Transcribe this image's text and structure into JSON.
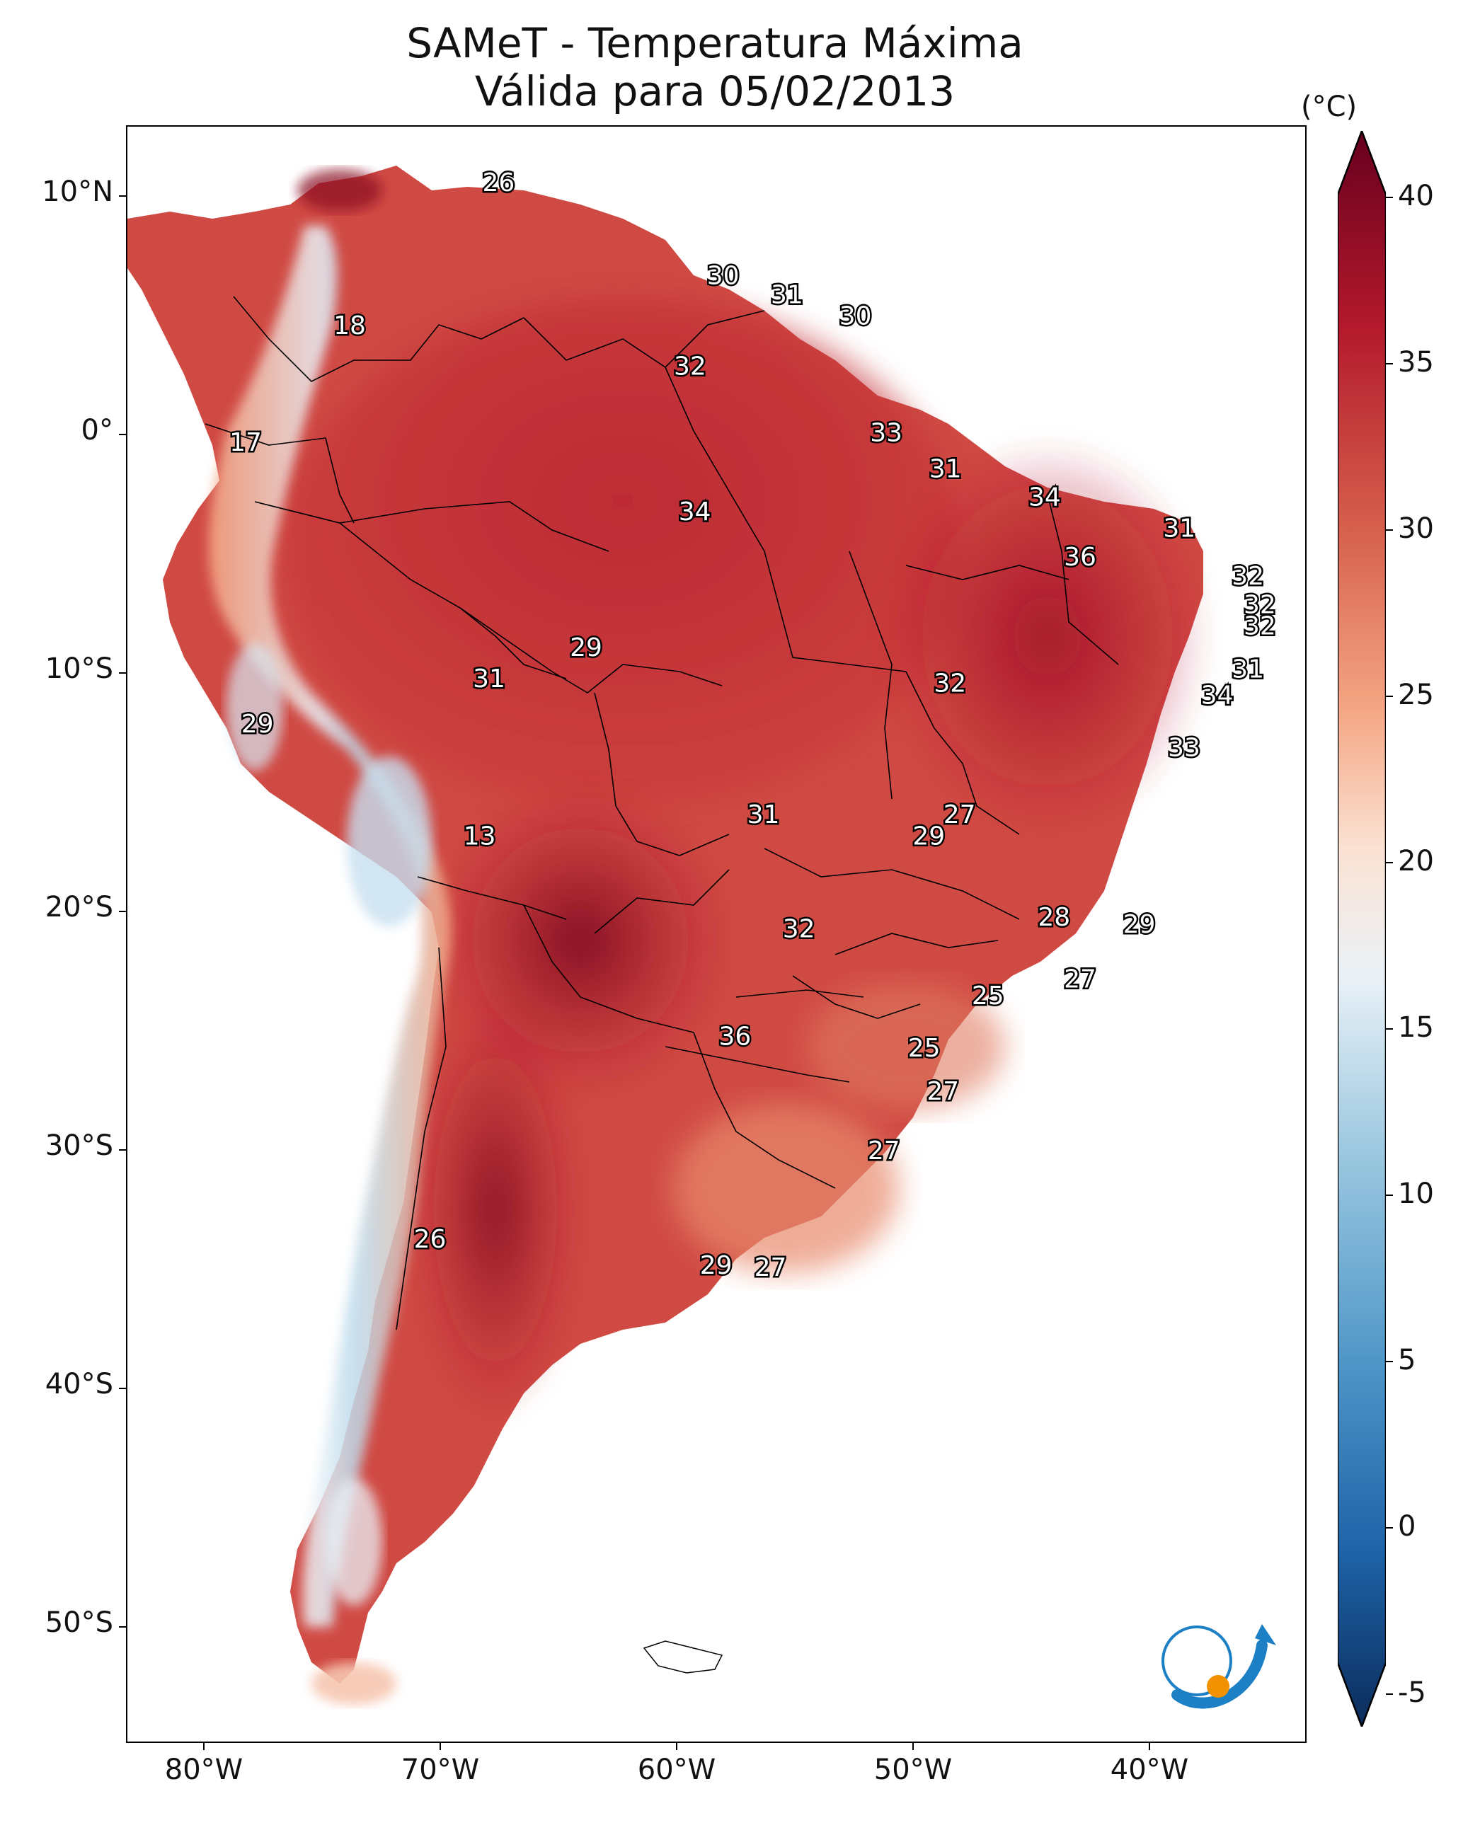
{
  "title": {
    "line1": "SAMeT - Temperatura Máxima",
    "line2": "Válida para 05/02/2013"
  },
  "colorbar": {
    "unit": "(°C)",
    "range": [
      -7,
      41
    ],
    "ticks": [
      "-5",
      "0",
      "5",
      "10",
      "15",
      "20",
      "25",
      "30",
      "35",
      "40"
    ],
    "colors": [
      "#0b2c5b",
      "#1e63a8",
      "#4a93c6",
      "#9cc8e0",
      "#e9f1f7",
      "#fbe2d3",
      "#f4a582",
      "#d6604d",
      "#b2182b",
      "#67001f"
    ]
  },
  "axes": {
    "lat_labels": [
      "10°N",
      "0°",
      "10°S",
      "20°S",
      "30°S",
      "40°S",
      "50°S"
    ],
    "lon_labels": [
      "80°W",
      "70°W",
      "60°W",
      "50°W",
      "40°W"
    ]
  },
  "temperature_labels": [
    {
      "text": "26",
      "lon": -67.3,
      "lat": 10.6
    },
    {
      "text": "30",
      "lon": -57.8,
      "lat": 6.7
    },
    {
      "text": "31",
      "lon": -55.1,
      "lat": 5.9
    },
    {
      "text": "30",
      "lon": -52.2,
      "lat": 5.0
    },
    {
      "text": "18",
      "lon": -73.6,
      "lat": 4.6
    },
    {
      "text": "32",
      "lon": -59.2,
      "lat": 2.9
    },
    {
      "text": "17",
      "lon": -78.0,
      "lat": -0.3
    },
    {
      "text": "33",
      "lon": -50.9,
      "lat": 0.1
    },
    {
      "text": "31",
      "lon": -48.4,
      "lat": -1.4
    },
    {
      "text": "34",
      "lon": -44.2,
      "lat": -2.6
    },
    {
      "text": "34",
      "lon": -59.0,
      "lat": -3.2
    },
    {
      "text": "31",
      "lon": -38.5,
      "lat": -3.9
    },
    {
      "text": "36",
      "lon": -42.7,
      "lat": -5.1
    },
    {
      "text": "32",
      "lon": -35.6,
      "lat": -5.9
    },
    {
      "text": "32",
      "lon": -35.1,
      "lat": -7.1
    },
    {
      "text": "32",
      "lon": -35.1,
      "lat": -8.0
    },
    {
      "text": "29",
      "lon": -63.6,
      "lat": -8.9
    },
    {
      "text": "31",
      "lon": -35.6,
      "lat": -9.8
    },
    {
      "text": "31",
      "lon": -67.7,
      "lat": -10.2
    },
    {
      "text": "32",
      "lon": -48.2,
      "lat": -10.4
    },
    {
      "text": "34",
      "lon": -36.9,
      "lat": -10.9
    },
    {
      "text": "29",
      "lon": -77.5,
      "lat": -12.1
    },
    {
      "text": "33",
      "lon": -38.3,
      "lat": -13.1
    },
    {
      "text": "27",
      "lon": -47.8,
      "lat": -15.9
    },
    {
      "text": "31",
      "lon": -56.1,
      "lat": -15.9
    },
    {
      "text": "29",
      "lon": -49.1,
      "lat": -16.8
    },
    {
      "text": "13",
      "lon": -68.1,
      "lat": -16.8
    },
    {
      "text": "28",
      "lon": -43.8,
      "lat": -20.2
    },
    {
      "text": "29",
      "lon": -40.2,
      "lat": -20.5
    },
    {
      "text": "32",
      "lon": -54.6,
      "lat": -20.7
    },
    {
      "text": "27",
      "lon": -42.7,
      "lat": -22.8
    },
    {
      "text": "25",
      "lon": -46.6,
      "lat": -23.5
    },
    {
      "text": "36",
      "lon": -57.3,
      "lat": -25.2
    },
    {
      "text": "25",
      "lon": -49.3,
      "lat": -25.7
    },
    {
      "text": "27",
      "lon": -48.5,
      "lat": -27.5
    },
    {
      "text": "27",
      "lon": -51.0,
      "lat": -30.0
    },
    {
      "text": "26",
      "lon": -70.2,
      "lat": -33.7
    },
    {
      "text": "29",
      "lon": -58.1,
      "lat": -34.8
    },
    {
      "text": "27",
      "lon": -55.8,
      "lat": -34.9
    }
  ]
}
